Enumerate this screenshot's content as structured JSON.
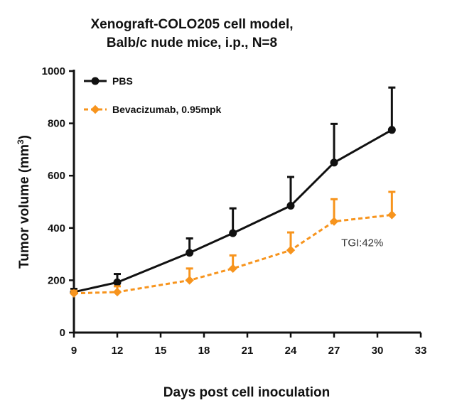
{
  "chart_data": {
    "type": "line",
    "title_lines": [
      "Xenograft-COLO205 cell model,",
      "Balb/c nude mice, i.p., N=8"
    ],
    "xlabel": "Days post cell inoculation",
    "ylabel_prefix": "Tumor volume (mm",
    "ylabel_superscript": "3",
    "ylabel_suffix": ")",
    "xlim": [
      9,
      33
    ],
    "ylim": [
      0,
      1000
    ],
    "x_ticks": [
      9,
      12,
      15,
      18,
      21,
      24,
      27,
      30,
      33
    ],
    "y_ticks": [
      0,
      200,
      400,
      600,
      800,
      1000
    ],
    "legend_position": "top-left",
    "grid": false,
    "series": [
      {
        "name": "PBS",
        "color": "#111111",
        "line_style": "solid",
        "marker": "circle",
        "x": [
          9,
          12,
          17,
          20,
          24,
          27,
          31
        ],
        "y": [
          155,
          192,
          305,
          380,
          485,
          650,
          775
        ],
        "error": [
          12,
          32,
          55,
          95,
          110,
          148,
          162
        ]
      },
      {
        "name": "Bevacizumab, 0.95mpk",
        "color": "#F7941D",
        "line_style": "dashed",
        "marker": "diamond",
        "x": [
          9,
          12,
          17,
          20,
          24,
          27,
          31
        ],
        "y": [
          150,
          155,
          200,
          245,
          315,
          425,
          450
        ],
        "error": [
          10,
          22,
          45,
          50,
          68,
          85,
          88
        ]
      }
    ],
    "annotations": [
      {
        "text": "TGI:42%",
        "x": 27.5,
        "y": 330
      }
    ]
  }
}
